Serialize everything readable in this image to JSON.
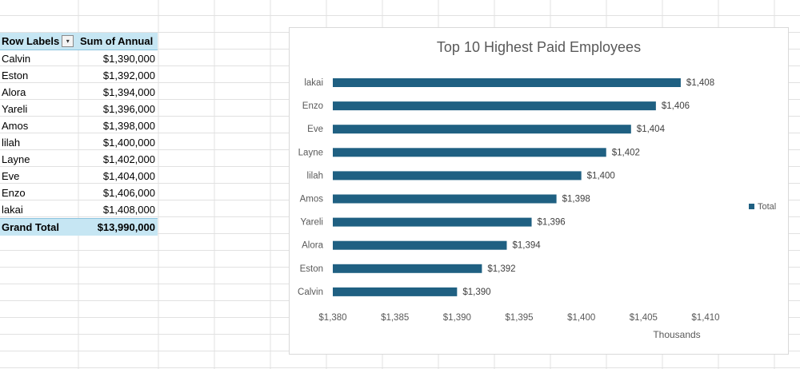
{
  "pivot": {
    "header_row_labels": "Row Labels",
    "header_sum": "Sum of Annual",
    "rows": [
      {
        "label": "Calvin",
        "value": "$1,390,000"
      },
      {
        "label": "Eston",
        "value": "$1,392,000"
      },
      {
        "label": "Alora",
        "value": "$1,394,000"
      },
      {
        "label": "Yareli",
        "value": "$1,396,000"
      },
      {
        "label": "Amos",
        "value": "$1,398,000"
      },
      {
        "label": "lilah",
        "value": "$1,400,000"
      },
      {
        "label": "Layne",
        "value": "$1,402,000"
      },
      {
        "label": "Eve",
        "value": "$1,404,000"
      },
      {
        "label": "Enzo",
        "value": "$1,406,000"
      },
      {
        "label": "lakai",
        "value": "$1,408,000"
      }
    ],
    "total_label": "Grand Total",
    "total_value": "$13,990,000"
  },
  "colors": {
    "bar": "#1f6082",
    "header_fill": "#c6e6f3",
    "gridline": "#e1e1e1"
  },
  "chart_data": {
    "type": "bar",
    "orientation": "horizontal",
    "title": "Top 10 Highest Paid Employees",
    "categories": [
      "Calvin",
      "Eston",
      "Alora",
      "Yareli",
      "Amos",
      "lilah",
      "Layne",
      "Eve",
      "Enzo",
      "lakai"
    ],
    "values": [
      1390,
      1392,
      1394,
      1396,
      1398,
      1400,
      1402,
      1404,
      1406,
      1408
    ],
    "data_labels": [
      "$1,390",
      "$1,392",
      "$1,394",
      "$1,396",
      "$1,398",
      "$1,400",
      "$1,402",
      "$1,404",
      "$1,406",
      "$1,408"
    ],
    "xlim": [
      1380,
      1410
    ],
    "x_ticks": [
      "$1,380",
      "$1,385",
      "$1,390",
      "$1,395",
      "$1,400",
      "$1,405",
      "$1,410"
    ],
    "x_tick_values": [
      1380,
      1385,
      1390,
      1395,
      1400,
      1405,
      1410
    ],
    "xlabel": "Thousands",
    "legend": [
      "Total"
    ],
    "legend_position": "right",
    "grid": false
  }
}
